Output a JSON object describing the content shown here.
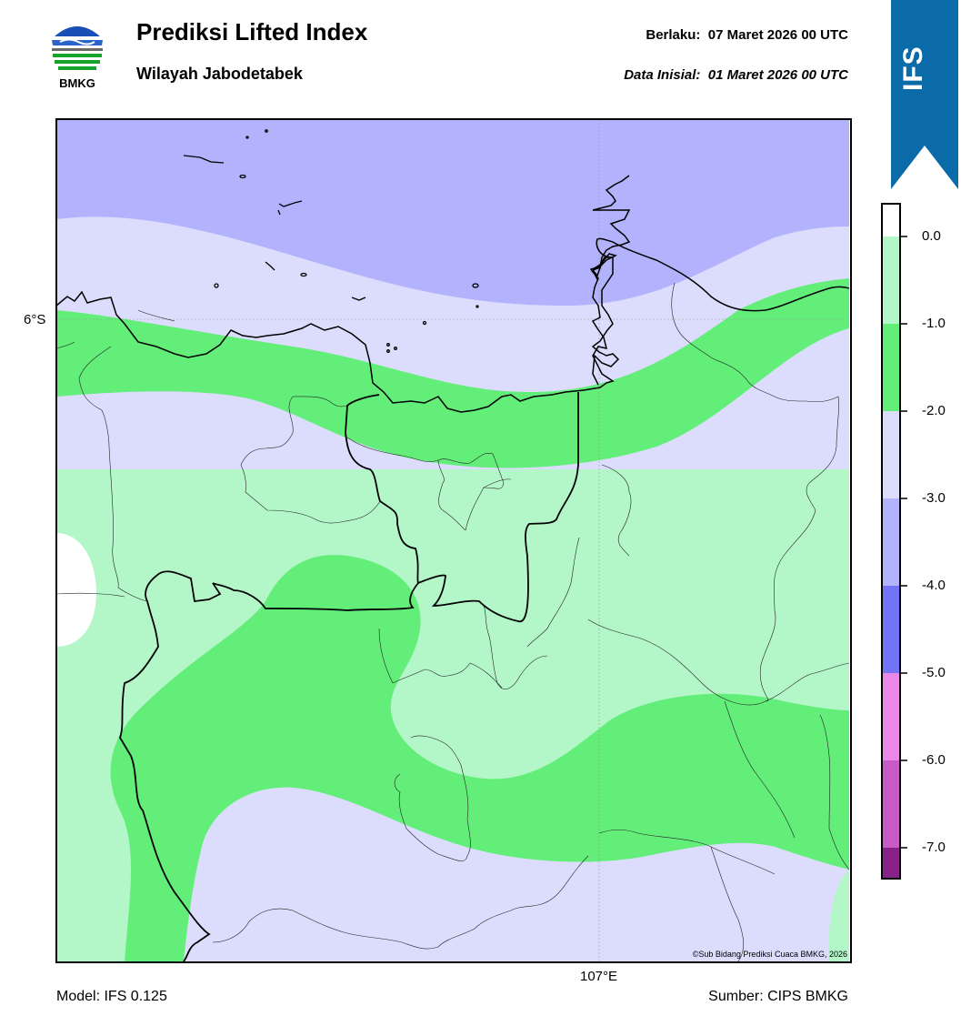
{
  "header": {
    "logo_text": "BMKG",
    "title": "Prediksi Lifted Index",
    "subtitle": "Wilayah Jabodetabek",
    "valid_label": "Berlaku:",
    "valid_time": "07 Maret 2026 00 UTC",
    "init_label": "Data Inisial:",
    "init_time": "01 Maret 2026 00 UTC"
  },
  "ribbon": {
    "label": "IFS",
    "color": "#0b6aa8"
  },
  "map": {
    "lat_label": "6°S",
    "lon_label": "107°E",
    "credit": "©Sub Bidang Prediksi Cuaca BMKG, 2026"
  },
  "colorbar": {
    "ticks": [
      "0.0",
      "-1.0",
      "-2.0",
      "-3.0",
      "-4.0",
      "-5.0",
      "-6.0",
      "-7.0"
    ],
    "colors": [
      "#ffffff",
      "#b3f7c9",
      "#63ee7a",
      "#dcdcfd",
      "#b3b3fd",
      "#7374f5",
      "#e988e6",
      "#c95bc6",
      "#a945a7",
      "#882288"
    ]
  },
  "footer": {
    "model": "Model: IFS 0.125",
    "source": "Sumber: CIPS BMKG"
  }
}
